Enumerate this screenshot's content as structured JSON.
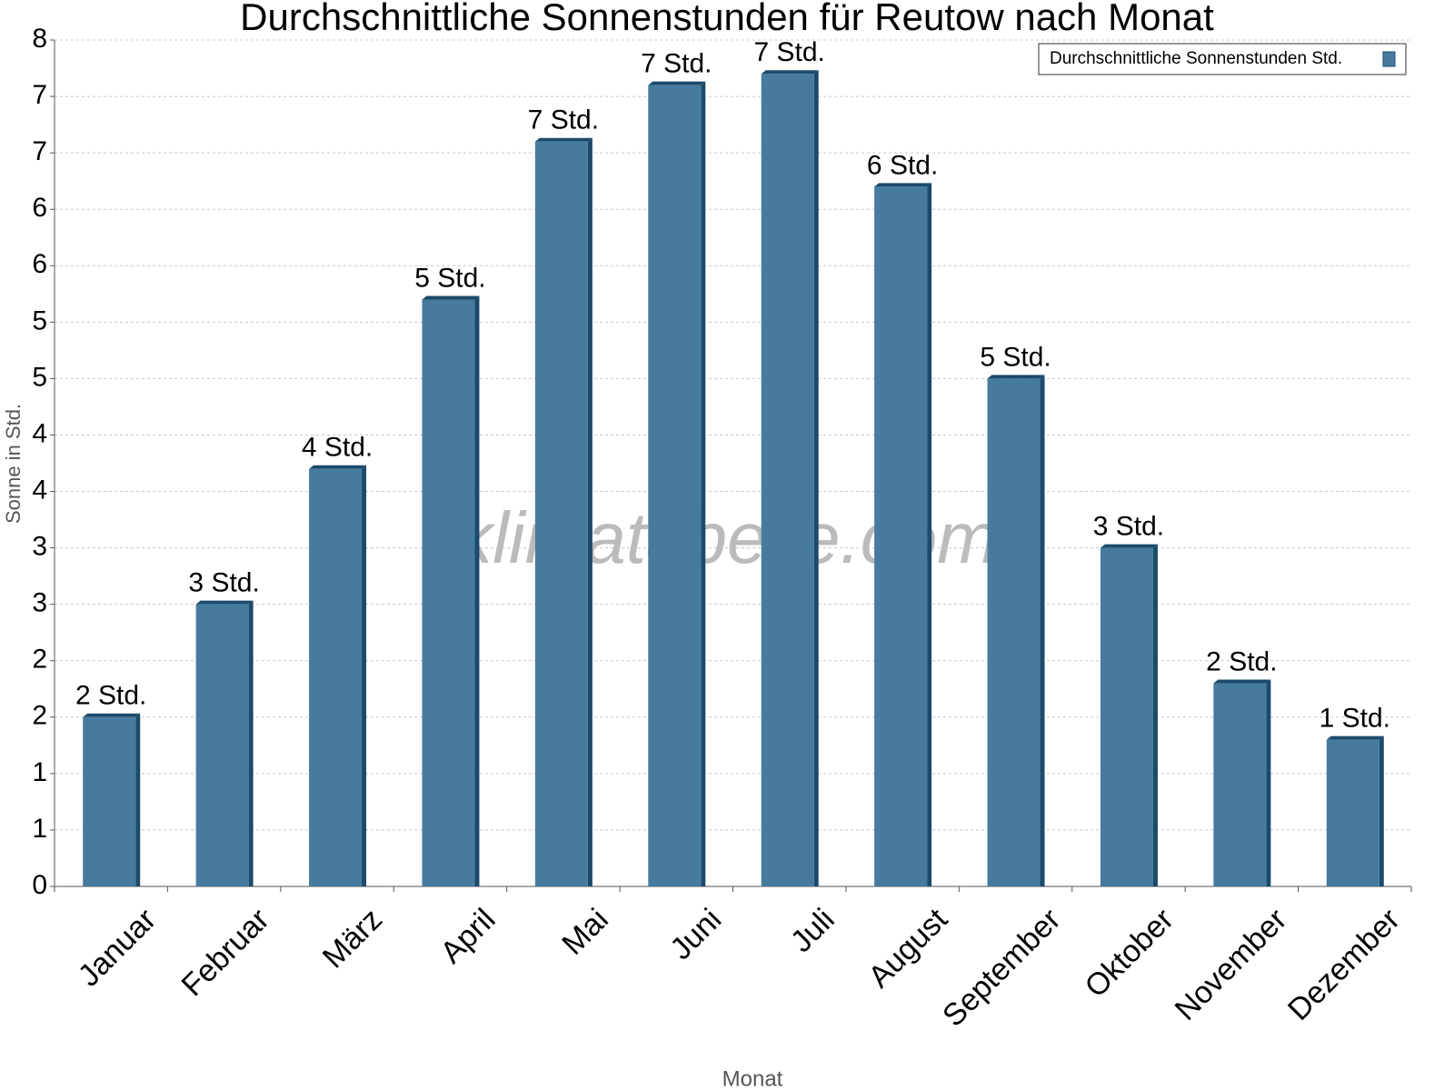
{
  "chart_data": {
    "type": "bar",
    "title": "Durchschnittliche Sonnenstunden für Reutow nach Monat",
    "x_label": "Monat",
    "y_label": "Sonne in Std.",
    "watermark": "klimatabelle.com",
    "categories": [
      "Januar",
      "Februar",
      "März",
      "April",
      "Mai",
      "Juni",
      "Juli",
      "August",
      "September",
      "Oktober",
      "November",
      "Dezember"
    ],
    "series": [
      {
        "name": "Durchschnittliche Sonnenstunden Std.",
        "color": "#467b9e",
        "values": [
          1.5,
          2.5,
          3.7,
          5.2,
          6.6,
          7.1,
          7.2,
          6.2,
          4.5,
          3.0,
          1.8,
          1.3
        ],
        "value_labels": [
          "2 Std.",
          "3 Std.",
          "4 Std.",
          "5 Std.",
          "7 Std.",
          "7 Std.",
          "7 Std.",
          "6 Std.",
          "5 Std.",
          "3 Std.",
          "2 Std.",
          "1 Std."
        ]
      }
    ],
    "ylim": [
      0,
      7.5
    ],
    "yticks": [
      0,
      {
        "value": 0.5,
        "label": "1"
      },
      1,
      {
        "value": 1.5,
        "label": "2"
      },
      2,
      {
        "value": 2.5,
        "label": "3"
      },
      3,
      {
        "value": 3.5,
        "label": "4"
      },
      4,
      {
        "value": 4.5,
        "label": "5"
      },
      5,
      {
        "value": 5.5,
        "label": "6"
      },
      6,
      {
        "value": 6.5,
        "label": "7"
      },
      7,
      {
        "value": 7.5,
        "label": "8"
      }
    ],
    "grid": true,
    "legend": "upper right"
  }
}
